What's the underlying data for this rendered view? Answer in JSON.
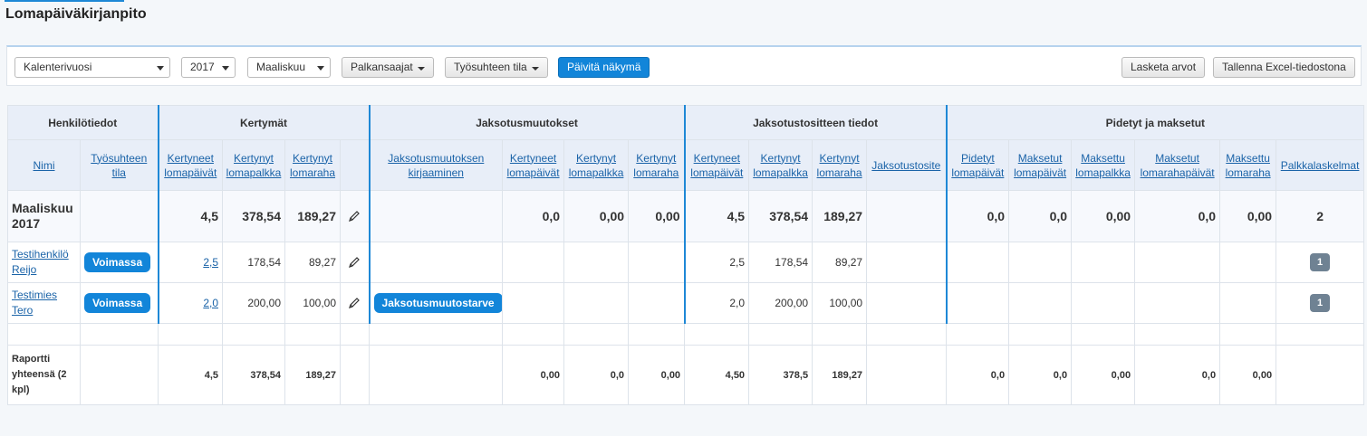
{
  "header": {
    "title": "Lomapäiväkirjanpito"
  },
  "toolbar": {
    "period_type": "Kalenterivuosi",
    "year": "2017",
    "month": "Maaliskuu",
    "filters": [
      "Palkansaajat",
      "Työsuhteen tila"
    ],
    "refresh": "Päivitä näkymä",
    "actions": [
      "Lasketa arvot",
      "Tallenna Excel-tiedostona"
    ]
  },
  "table": {
    "groups": [
      {
        "label": "Henkilötiedot",
        "span": 2
      },
      {
        "label": "Kertymät",
        "span": 4
      },
      {
        "label": "Jaksotusmuutokset",
        "span": 4
      },
      {
        "label": "Jaksotustositteen tiedot",
        "span": 4
      },
      {
        "label": "Pidetyt ja maksetut",
        "span": 6
      }
    ],
    "columns": [
      "Nimi",
      "Työsuhteen tila",
      "Kertyneet lomapäivät",
      "Kertynyt lomapalkka",
      "Kertynyt lomaraha",
      null,
      "Jaksotusmuutoksen kirjaaminen",
      "Kertyneet lomapäivät",
      "Kertynyt lomapalkka",
      "Kertynyt lomaraha",
      "Kertyneet lomapäivät",
      "Kertynyt lomapalkka",
      "Kertynyt lomaraha",
      "Jaksotustosite",
      "Pidetyt lomapäivät",
      "Maksetut lomapäivät",
      "Maksettu lomapalkka",
      "Maksetut lomarahapäivät",
      "Maksettu lomaraha",
      "Palkkalaskelmat"
    ],
    "summary": [
      "Maaliskuu 2017",
      null,
      "4,5",
      "378,54",
      "189,27",
      null,
      null,
      "0,0",
      "0,00",
      "0,00",
      "4,5",
      "378,54",
      "189,27",
      null,
      "0,0",
      "0,0",
      "0,00",
      "0,0",
      "0,00",
      "2"
    ],
    "rows": [
      [
        "Testihenkilö Reijo",
        "Voimassa",
        "2,5",
        "178,54",
        "89,27",
        null,
        null,
        null,
        null,
        null,
        "2,5",
        "178,54",
        "89,27",
        null,
        null,
        null,
        null,
        null,
        null,
        "1"
      ],
      [
        "Testimies Tero",
        "Voimassa",
        "2,0",
        "200,00",
        "100,00",
        null,
        "Jaksotusmuutostarve",
        null,
        null,
        null,
        "2,0",
        "200,00",
        "100,00",
        null,
        null,
        null,
        null,
        null,
        null,
        "1"
      ]
    ],
    "total": [
      "Raportti yhteensä (2 kpl)",
      null,
      "4,5",
      "378,54",
      "189,27",
      null,
      null,
      "0,00",
      "0,0",
      "0,00",
      "4,50",
      "378,5",
      "189,27",
      null,
      "0,0",
      "0,0",
      "0,00",
      "0,0",
      "0,00",
      null
    ]
  }
}
